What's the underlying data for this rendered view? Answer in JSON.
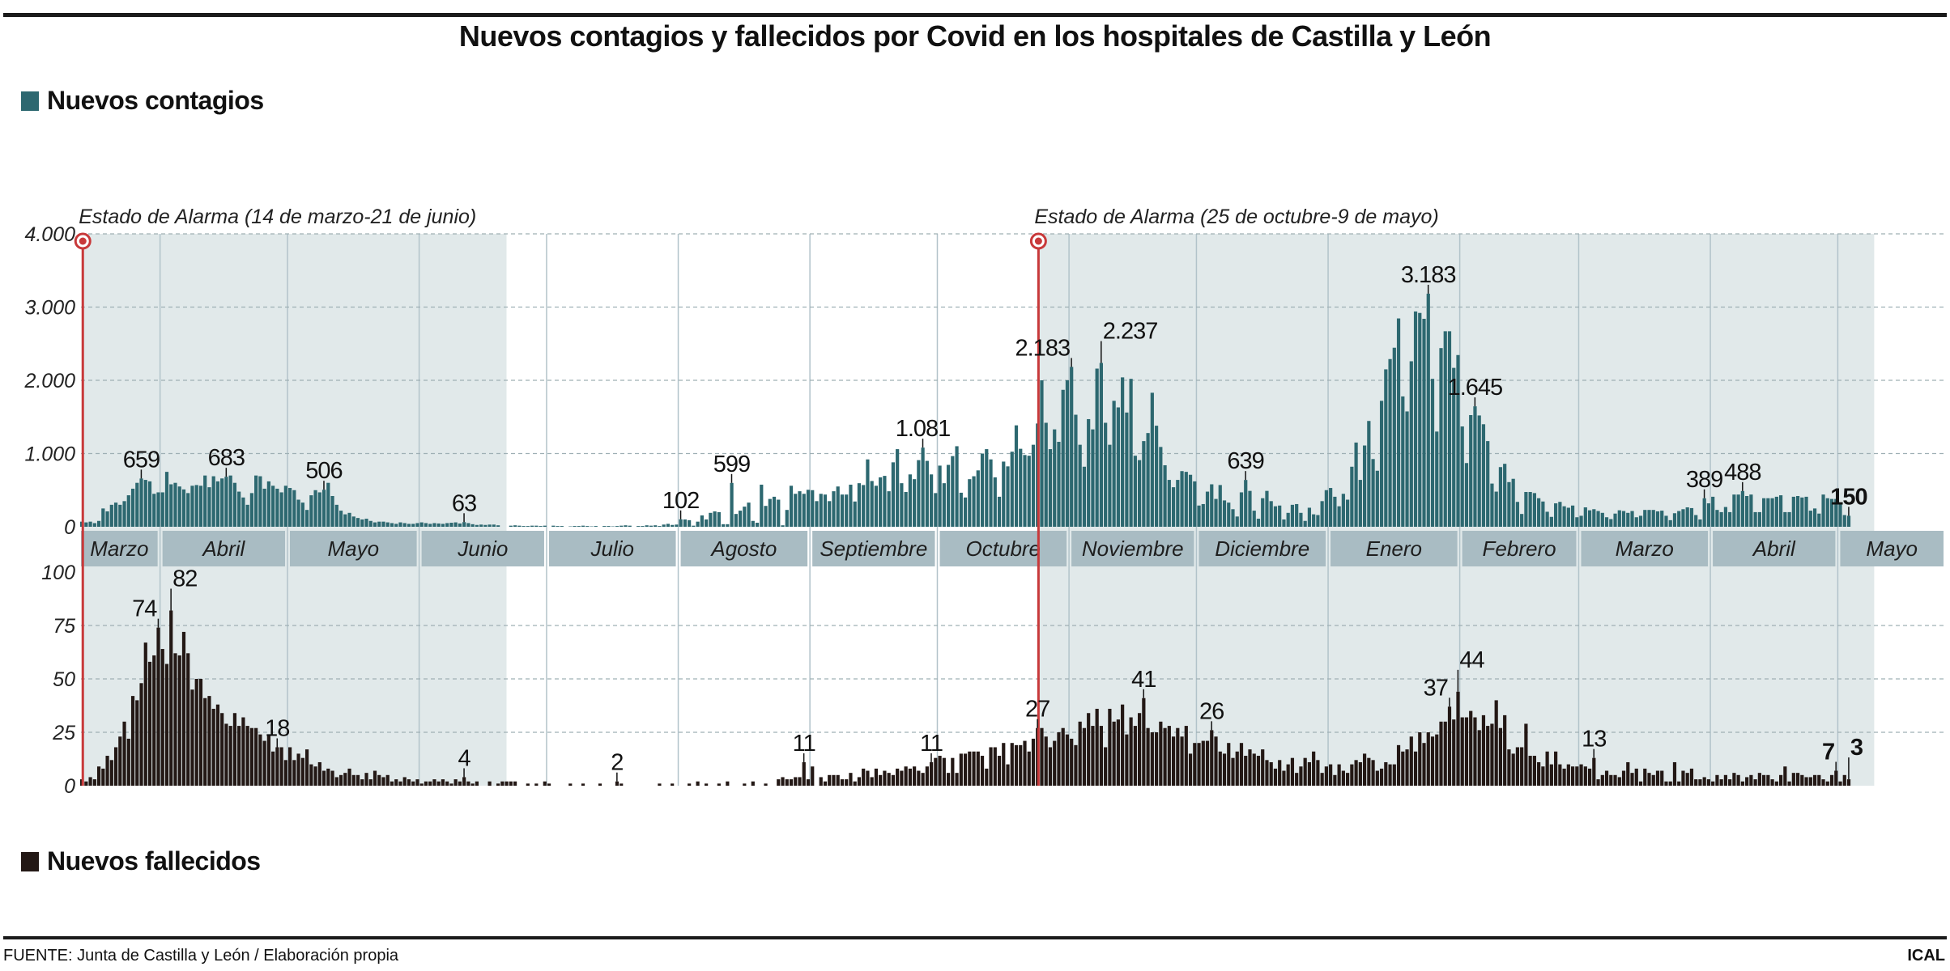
{
  "title": "Nuevos contagios y fallecidos por Covid en los hospitales de Castilla y León",
  "footer": {
    "source": "FUENTE: Junta de Castilla y León / Elaboración propia",
    "brand": "ICAL"
  },
  "chart_data": {
    "type": "bar",
    "title": "Nuevos contagios y fallecidos por Covid en los hospitales de Castilla y León",
    "x_interval": "day",
    "xlim": [
      "2020-03-13",
      "2021-05-03"
    ],
    "month_labels": [
      "Marzo",
      "Abril",
      "Mayo",
      "Junio",
      "Julio",
      "Agosto",
      "Septiembre",
      "Octubre",
      "Noviembre",
      "Diciembre",
      "Enero",
      "Febrero",
      "Marzo",
      "Abril",
      "Mayo"
    ],
    "grid": true,
    "colors": {
      "shade": "#e1e9ea",
      "band": "#a9bcc3",
      "alarm": "#c8393a",
      "grid": "#9fb0b5"
    },
    "periods": [
      {
        "label": "Estado de Alarma (14 de marzo-21 de junio)",
        "from": "2020-03-14",
        "to": "2020-06-21"
      },
      {
        "label": "Estado de Alarma (25 de octubre-9 de mayo)",
        "from": "2020-10-25",
        "to": "2021-05-09"
      }
    ],
    "panels": [
      {
        "name": "Nuevos contagios",
        "color": "#2d6870",
        "ylim": [
          0,
          4000
        ],
        "yticks": [
          0,
          1000,
          2000,
          3000,
          4000
        ],
        "ytick_labels": [
          "0",
          "1.000",
          "2.000",
          "3.000",
          "4.000"
        ],
        "values": [
          70,
          60,
          70,
          50,
          80,
          250,
          210,
          300,
          330,
          300,
          350,
          430,
          520,
          600,
          659,
          640,
          620,
          450,
          470,
          470,
          750,
          580,
          600,
          550,
          510,
          460,
          560,
          570,
          560,
          700,
          540,
          690,
          620,
          660,
          683,
          700,
          600,
          480,
          400,
          300,
          460,
          700,
          690,
          520,
          620,
          560,
          520,
          470,
          560,
          530,
          500,
          370,
          330,
          230,
          430,
          500,
          470,
          506,
          600,
          420,
          300,
          220,
          170,
          190,
          140,
          120,
          100,
          110,
          80,
          60,
          70,
          70,
          60,
          50,
          40,
          60,
          50,
          40,
          40,
          50,
          60,
          50,
          40,
          50,
          45,
          40,
          50,
          55,
          60,
          45,
          63,
          50,
          35,
          25,
          30,
          25,
          30,
          30,
          20,
          0,
          0,
          15,
          20,
          15,
          10,
          10,
          15,
          15,
          10,
          15,
          0,
          15,
          10,
          10,
          0,
          5,
          10,
          10,
          15,
          10,
          5,
          10,
          0,
          10,
          10,
          5,
          10,
          15,
          20,
          15,
          0,
          10,
          10,
          20,
          15,
          20,
          10,
          30,
          40,
          25,
          30,
          102,
          100,
          90,
          15,
          70,
          155,
          100,
          190,
          210,
          200,
          35,
          35,
          599,
          175,
          220,
          275,
          330,
          80,
          55,
          575,
          285,
          380,
          410,
          370,
          20,
          230,
          560,
          450,
          485,
          450,
          505,
          500,
          350,
          450,
          440,
          350,
          485,
          550,
          440,
          440,
          575,
          345,
          595,
          570,
          920,
          625,
          560,
          675,
          695,
          485,
          880,
          1060,
          595,
          475,
          715,
          650,
          910,
          1081,
          900,
          715,
          460,
          835,
          595,
          845,
          965,
          1100,
          465,
          400,
          650,
          690,
          770,
          1000,
          1060,
          920,
          675,
          410,
          890,
          825,
          1025,
          1385,
          1065,
          980,
          970,
          1120,
          1410,
          2000,
          1420,
          1060,
          1330,
          1160,
          1870,
          2000,
          2183,
          1530,
          1120,
          820,
          1470,
          1330,
          2160,
          2237,
          1420,
          1120,
          1720,
          1630,
          2040,
          1560,
          2020,
          970,
          910,
          1170,
          1280,
          1830,
          1380,
          1090,
          840,
          640,
          540,
          640,
          760,
          750,
          710,
          620,
          290,
          310,
          480,
          580,
          380,
          570,
          360,
          330,
          240,
          140,
          470,
          639,
          490,
          220,
          110,
          390,
          490,
          350,
          280,
          290,
          100,
          190,
          300,
          310,
          190,
          80,
          260,
          170,
          160,
          350,
          500,
          530,
          410,
          280,
          450,
          370,
          820,
          1150,
          640,
          1110,
          1445,
          925,
          765,
          1720,
          2150,
          2290,
          2445,
          2845,
          1780,
          1575,
          2260,
          2940,
          2920,
          2840,
          3183,
          2020,
          1300,
          2440,
          2670,
          2670,
          2170,
          2345,
          1370,
          870,
          1525,
          1645,
          1520,
          1400,
          1170,
          590,
          480,
          815,
          860,
          610,
          655,
          340,
          175,
          475,
          475,
          460,
          390,
          345,
          205,
          135,
          320,
          340,
          280,
          260,
          290,
          130,
          150,
          265,
          225,
          240,
          215,
          190,
          130,
          105,
          180,
          225,
          215,
          190,
          215,
          130,
          150,
          230,
          230,
          230,
          210,
          220,
          150,
          90,
          185,
          215,
          240,
          265,
          255,
          160,
          100,
          389,
          320,
          410,
          230,
          200,
          270,
          200,
          440,
          440,
          488,
          420,
          440,
          200,
          200,
          390,
          390,
          390,
          410,
          430,
          200,
          200,
          410,
          420,
          400,
          410,
          220,
          250,
          180,
          440,
          390,
          380,
          380,
          310,
          160,
          150
        ],
        "annotations": [
          {
            "date": "2020-03-27",
            "label": "659"
          },
          {
            "date": "2020-04-16",
            "label": "683"
          },
          {
            "date": "2020-05-09",
            "label": "506"
          },
          {
            "date": "2020-06-11",
            "label": "63"
          },
          {
            "date": "2020-08-01",
            "label": "102"
          },
          {
            "date": "2020-08-13",
            "label": "599"
          },
          {
            "date": "2020-09-27",
            "label": "1.081"
          },
          {
            "date": "2020-11-01",
            "label": "2.183"
          },
          {
            "date": "2020-11-08",
            "label": "2.237"
          },
          {
            "date": "2020-12-12",
            "label": "639"
          },
          {
            "date": "2021-01-24",
            "label": "3.183"
          },
          {
            "date": "2021-02-04",
            "label": "1.645"
          },
          {
            "date": "2021-03-30",
            "label": "389"
          },
          {
            "date": "2021-04-08",
            "label": "488"
          },
          {
            "date": "2021-05-03",
            "label": "150",
            "bold": true
          }
        ]
      },
      {
        "name": "Nuevos fallecidos",
        "color": "#231815",
        "ylim": [
          0,
          100
        ],
        "yticks": [
          0,
          25,
          50,
          75,
          100
        ],
        "ytick_labels": [
          "0",
          "25",
          "50",
          "75",
          "100"
        ],
        "values": [
          3,
          2,
          4,
          3,
          9,
          8,
          14,
          12,
          18,
          23,
          30,
          22,
          42,
          40,
          48,
          67,
          58,
          61,
          74,
          64,
          57,
          82,
          62,
          61,
          72,
          62,
          45,
          50,
          50,
          41,
          42,
          36,
          38,
          34,
          29,
          28,
          34,
          28,
          32,
          28,
          27,
          27,
          24,
          21,
          24,
          16,
          18,
          18,
          12,
          18,
          12,
          15,
          13,
          17,
          10,
          9,
          11,
          7,
          8,
          7,
          4,
          5,
          6,
          8,
          5,
          5,
          3,
          6,
          3,
          7,
          5,
          4,
          5,
          2,
          3,
          2,
          4,
          3,
          2,
          3,
          1,
          2,
          2,
          3,
          2,
          3,
          2,
          1,
          3,
          2,
          4,
          2,
          1,
          2,
          0,
          0,
          2,
          0,
          1,
          2,
          2,
          2,
          2,
          0,
          0,
          1,
          0,
          1,
          0,
          2,
          1,
          0,
          0,
          0,
          0,
          1,
          0,
          0,
          1,
          0,
          0,
          0,
          1,
          0,
          0,
          0,
          2,
          1,
          0,
          0,
          0,
          0,
          0,
          0,
          0,
          0,
          1,
          0,
          0,
          1,
          0,
          0,
          0,
          1,
          0,
          2,
          0,
          1,
          0,
          0,
          1,
          0,
          2,
          0,
          0,
          0,
          1,
          0,
          2,
          0,
          0,
          1,
          0,
          0,
          3,
          4,
          3,
          3,
          4,
          4,
          11,
          3,
          9,
          0,
          4,
          2,
          5,
          5,
          5,
          3,
          3,
          6,
          2,
          4,
          8,
          7,
          4,
          8,
          5,
          7,
          6,
          5,
          8,
          7,
          9,
          8,
          9,
          7,
          6,
          9,
          11,
          13,
          14,
          13,
          6,
          13,
          6,
          15,
          15,
          16,
          16,
          16,
          14,
          8,
          18,
          18,
          14,
          20,
          10,
          20,
          19,
          19,
          21,
          16,
          22,
          27,
          27,
          23,
          18,
          21,
          25,
          27,
          24,
          22,
          19,
          30,
          27,
          34,
          28,
          36,
          28,
          18,
          36,
          30,
          31,
          38,
          24,
          32,
          28,
          34,
          41,
          27,
          25,
          25,
          30,
          27,
          28,
          23,
          27,
          23,
          28,
          15,
          20,
          20,
          21,
          21,
          26,
          23,
          16,
          15,
          20,
          13,
          16,
          20,
          14,
          17,
          15,
          14,
          17,
          12,
          11,
          8,
          12,
          7,
          10,
          13,
          6,
          9,
          13,
          11,
          16,
          12,
          6,
          9,
          10,
          5,
          10,
          7,
          6,
          10,
          12,
          11,
          15,
          13,
          12,
          7,
          8,
          11,
          10,
          10,
          19,
          16,
          17,
          23,
          16,
          25,
          20,
          25,
          23,
          24,
          30,
          30,
          37,
          31,
          44,
          32,
          32,
          35,
          32,
          26,
          33,
          28,
          29,
          40,
          27,
          33,
          17,
          15,
          18,
          18,
          29,
          14,
          14,
          11,
          9,
          16,
          10,
          16,
          10,
          8,
          10,
          9,
          9,
          10,
          9,
          8,
          13,
          3,
          5,
          7,
          5,
          5,
          4,
          7,
          11,
          6,
          8,
          2,
          8,
          6,
          5,
          7,
          7,
          2,
          2,
          11,
          2,
          7,
          6,
          8,
          3,
          3,
          4,
          3,
          2,
          5,
          3,
          5,
          3,
          6,
          5,
          2,
          4,
          5,
          3,
          6,
          5,
          5,
          3,
          2,
          5,
          9,
          2,
          6,
          6,
          5,
          4,
          4,
          5,
          5,
          3,
          2,
          5,
          7,
          2,
          5,
          3
        ],
        "annotations": [
          {
            "date": "2020-03-31",
            "label": "74"
          },
          {
            "date": "2020-04-03",
            "label": "82"
          },
          {
            "date": "2020-04-28",
            "label": "18"
          },
          {
            "date": "2020-06-11",
            "label": "4"
          },
          {
            "date": "2020-07-17",
            "label": "2"
          },
          {
            "date": "2020-08-30",
            "label": "11"
          },
          {
            "date": "2020-09-29",
            "label": "11"
          },
          {
            "date": "2020-10-24",
            "label": "27"
          },
          {
            "date": "2020-11-18",
            "label": "41"
          },
          {
            "date": "2020-12-04",
            "label": "26"
          },
          {
            "date": "2021-01-29",
            "label": "37"
          },
          {
            "date": "2021-01-31",
            "label": "44"
          },
          {
            "date": "2021-03-04",
            "label": "13"
          },
          {
            "date": "2021-04-30",
            "label": "7",
            "bold": true
          },
          {
            "date": "2021-05-03",
            "label": "3",
            "bold": true
          }
        ]
      }
    ]
  }
}
